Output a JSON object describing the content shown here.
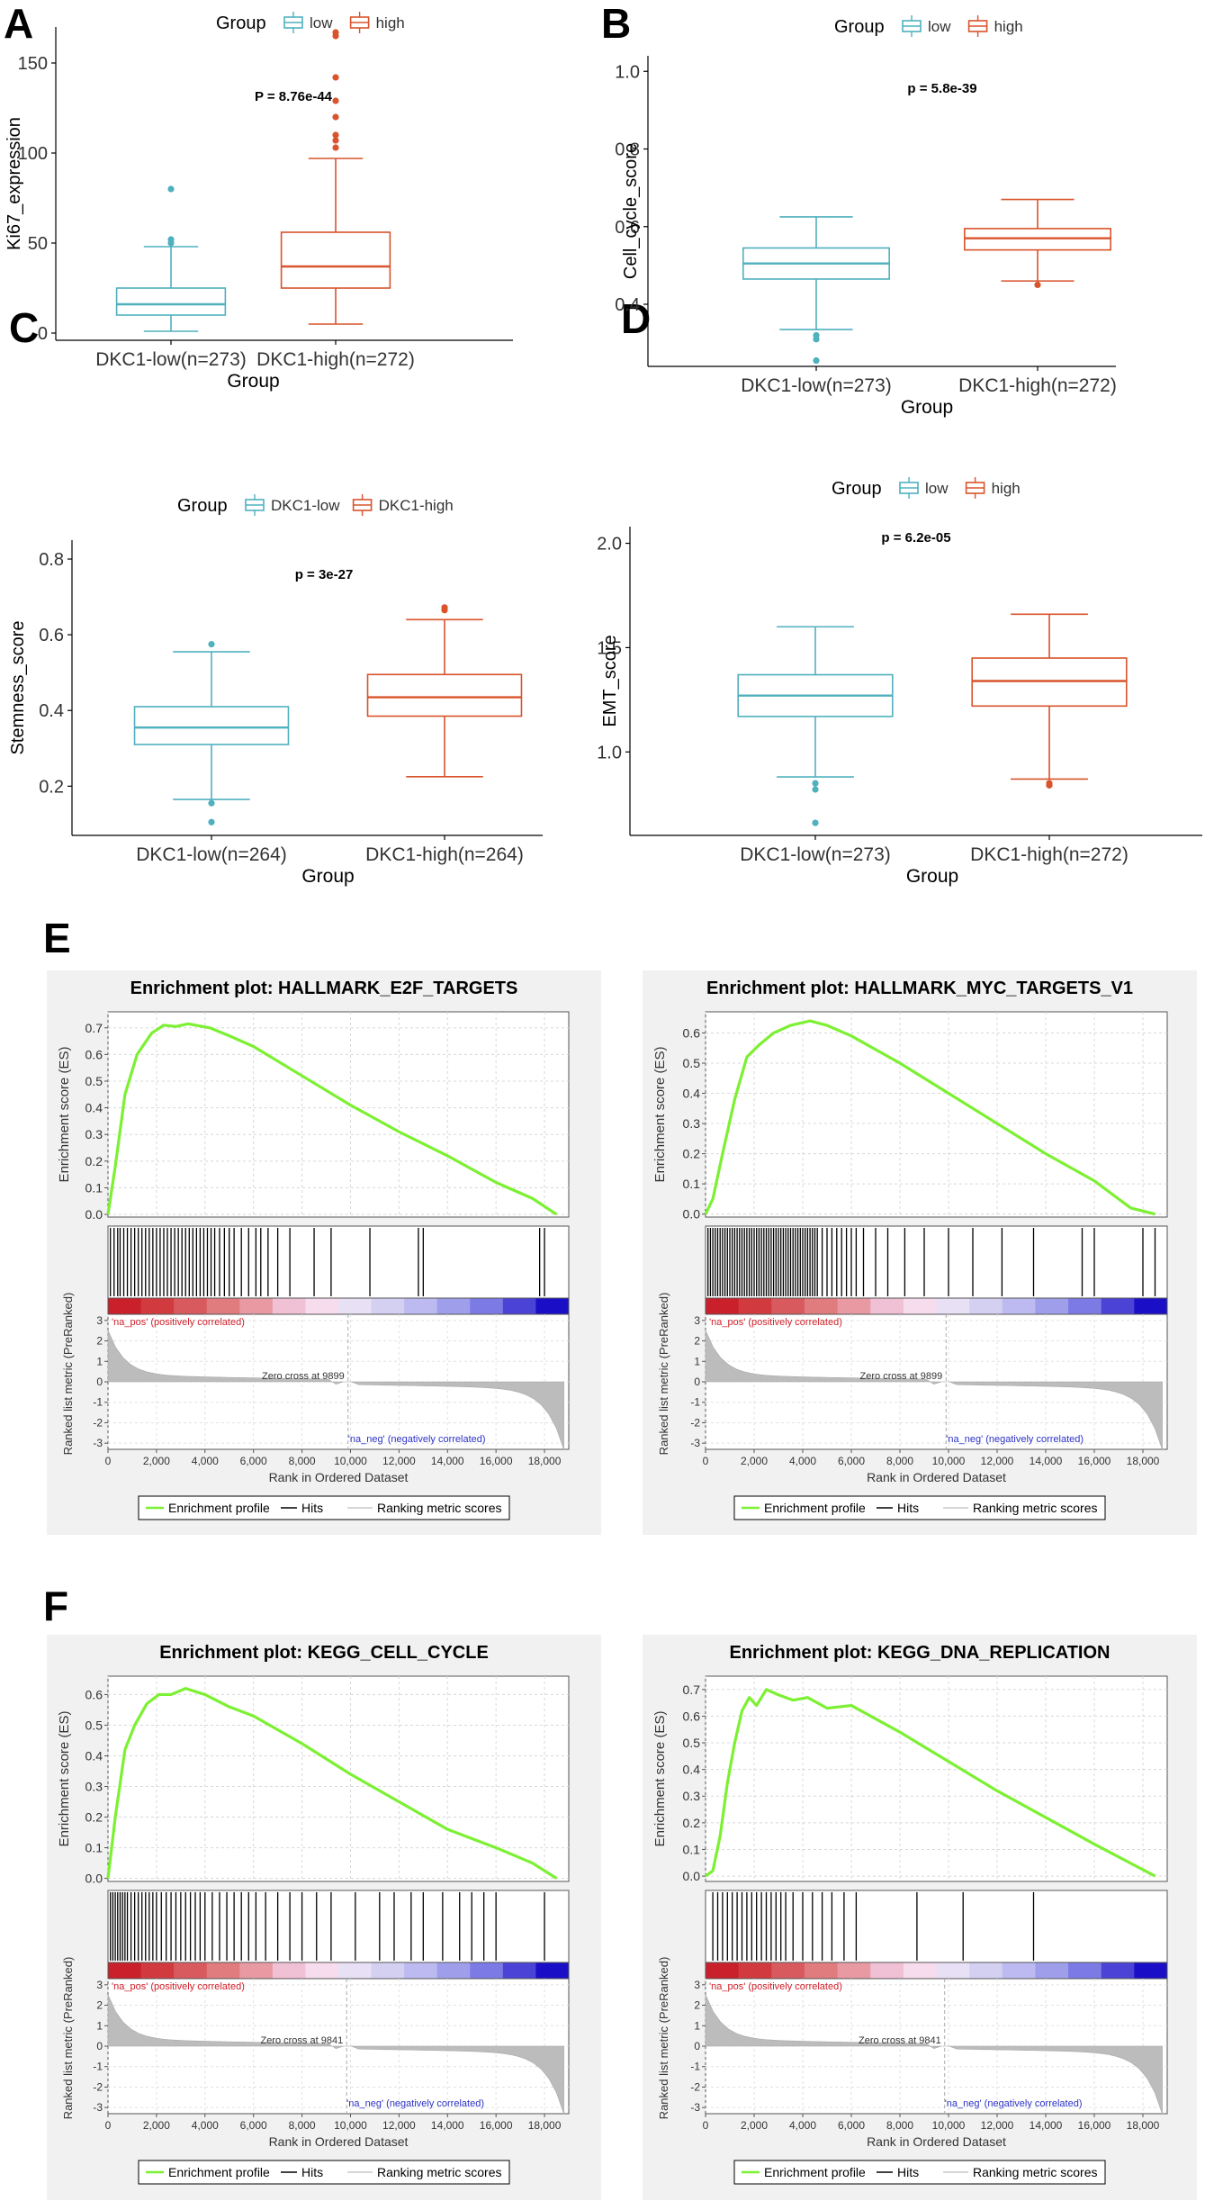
{
  "panel_letters": [
    "A",
    "B",
    "C",
    "D",
    "E",
    "F"
  ],
  "colors": {
    "low": "#4fb0be",
    "high": "#d9532b",
    "es_line": "#7cf032",
    "gray": "#bcbcbc",
    "hit": "#000000"
  },
  "legend_common": {
    "hits": "Hits",
    "ranking": "Ranking metric scores",
    "profile": "Enrichment profile"
  },
  "gsea_common": {
    "es_ylabel": "Enrichment score (ES)",
    "metric_ylabel": "Ranked list metric (PreRanked)",
    "xlabel": "Rank in Ordered Dataset",
    "pos_label": "'na_pos' (positively correlated)",
    "neg_label": "'na_neg' (negatively correlated)"
  },
  "chart_data": [
    {
      "panel": "A",
      "type": "boxplot",
      "legend_title": "Group",
      "legend": [
        "low",
        "high"
      ],
      "ylabel": "Ki67_expression",
      "xlabel": "Group",
      "categories": [
        "DKC1-low(n=273)",
        "DKC1-high(n=272)"
      ],
      "ylim": [
        -4,
        170
      ],
      "yticks": [
        0,
        50,
        100,
        150
      ],
      "ytick_labels": [
        "0",
        "50",
        "100",
        "150"
      ],
      "pvalue": "P = 8.76e-44",
      "boxes": [
        {
          "q1": 10,
          "median": 16,
          "q3": 25,
          "wlo": 1,
          "whi": 48,
          "outliers": [
            50,
            52,
            80
          ]
        },
        {
          "q1": 25,
          "median": 37,
          "q3": 56,
          "wlo": 5,
          "whi": 97,
          "outliers": [
            103,
            107,
            110,
            120,
            129,
            142,
            165,
            167
          ]
        }
      ]
    },
    {
      "panel": "B",
      "type": "boxplot",
      "legend_title": "Group",
      "legend": [
        "low",
        "high"
      ],
      "ylabel": "Cell_cycle_score",
      "xlabel": "Group",
      "categories": [
        "DKC1-low(n=273)",
        "DKC1-high(n=272)"
      ],
      "ylim": [
        0.24,
        1.04
      ],
      "yticks": [
        0.4,
        0.6,
        0.8,
        1.0
      ],
      "ytick_labels": [
        "0.4",
        "0.6",
        "0.8",
        "1.0"
      ],
      "pvalue": "p = 5.8e-39",
      "boxes": [
        {
          "q1": 0.465,
          "median": 0.505,
          "q3": 0.545,
          "wlo": 0.335,
          "whi": 0.625,
          "outliers": [
            0.31,
            0.32,
            0.255
          ]
        },
        {
          "q1": 0.54,
          "median": 0.57,
          "q3": 0.595,
          "wlo": 0.46,
          "whi": 0.67,
          "outliers": [
            0.45
          ]
        }
      ]
    },
    {
      "panel": "C",
      "type": "boxplot",
      "legend_title": "Group",
      "legend": [
        "DKC1-low",
        "DKC1-high"
      ],
      "ylabel": "Stemness_score",
      "xlabel": "Group",
      "categories": [
        "DKC1-low(n=264)",
        "DKC1-high(n=264)"
      ],
      "ylim": [
        0.07,
        0.85
      ],
      "yticks": [
        0.2,
        0.4,
        0.6,
        0.8
      ],
      "ytick_labels": [
        "0.2",
        "0.4",
        "0.6",
        "0.8"
      ],
      "pvalue": "p = 3e-27",
      "boxes": [
        {
          "q1": 0.31,
          "median": 0.355,
          "q3": 0.41,
          "wlo": 0.165,
          "whi": 0.555,
          "outliers": [
            0.575,
            0.155,
            0.105
          ]
        },
        {
          "q1": 0.385,
          "median": 0.435,
          "q3": 0.495,
          "wlo": 0.225,
          "whi": 0.64,
          "outliers": [
            0.665,
            0.672
          ]
        }
      ]
    },
    {
      "panel": "D",
      "type": "boxplot",
      "legend_title": "Group",
      "legend": [
        "low",
        "high"
      ],
      "ylabel": "EMT_score",
      "xlabel": "Group",
      "categories": [
        "DKC1-low(n=273)",
        "DKC1-high(n=272)"
      ],
      "ylim": [
        0.6,
        2.08
      ],
      "yticks": [
        1.0,
        1.5,
        2.0
      ],
      "ytick_labels": [
        "1.0",
        "1.5",
        "2.0"
      ],
      "pvalue": "p = 6.2e-05",
      "boxes": [
        {
          "q1": 1.17,
          "median": 1.27,
          "q3": 1.37,
          "wlo": 0.88,
          "whi": 1.6,
          "outliers": [
            0.85,
            0.82,
            0.66
          ]
        },
        {
          "q1": 1.22,
          "median": 1.34,
          "q3": 1.45,
          "wlo": 0.87,
          "whi": 1.66,
          "outliers": [
            0.85,
            0.84
          ]
        }
      ]
    },
    {
      "panel": "E1",
      "type": "line",
      "title": "Enrichment plot: HALLMARK_E2F_TARGETS",
      "es_ticks": [
        0,
        0.1,
        0.2,
        0.3,
        0.4,
        0.5,
        0.6,
        0.7
      ],
      "es_tick_labels": [
        "0.0",
        "0.1",
        "0.2",
        "0.3",
        "0.4",
        "0.5",
        "0.6",
        "0.7"
      ],
      "es_ylim": [
        -0.01,
        0.76
      ],
      "x": [
        0,
        300,
        700,
        1200,
        1800,
        2300,
        2800,
        3300,
        4200,
        5000,
        6000,
        8000,
        10000,
        12000,
        14000,
        16000,
        17500,
        18500
      ],
      "es": [
        0,
        0.18,
        0.45,
        0.6,
        0.68,
        0.71,
        0.705,
        0.715,
        0.7,
        0.67,
        0.63,
        0.52,
        0.41,
        0.31,
        0.22,
        0.12,
        0.06,
        0
      ],
      "hits": [
        100,
        250,
        400,
        500,
        650,
        800,
        950,
        1100,
        1250,
        1400,
        1550,
        1700,
        1850,
        2000,
        2150,
        2300,
        2450,
        2600,
        2750,
        2900,
        3050,
        3200,
        3350,
        3500,
        3650,
        3800,
        3950,
        4100,
        4250,
        4400,
        4600,
        4800,
        5000,
        5200,
        5500,
        5800,
        6100,
        6300,
        6600,
        7000,
        7500,
        8500,
        9200,
        10800,
        12800,
        13000,
        17800,
        18000
      ],
      "metric_ylim": [
        -3.3,
        3.3
      ],
      "metric_ticks": [
        -3,
        -2,
        -1,
        0,
        1,
        2,
        3
      ],
      "metric_tick_labels": [
        "-3",
        "-2",
        "-1",
        "0",
        "1",
        "2",
        "3"
      ],
      "zero_cross": 9899,
      "zero_cross_label": "Zero cross at 9899",
      "xlim": [
        0,
        19000
      ],
      "xticks": [
        0,
        2000,
        4000,
        6000,
        8000,
        10000,
        12000,
        14000,
        16000,
        18000
      ],
      "xtick_labels": [
        "0",
        "2,000",
        "4,000",
        "6,000",
        "8,000",
        "10,000",
        "12,000",
        "14,000",
        "16,000",
        "18,000"
      ]
    },
    {
      "panel": "E2",
      "type": "line",
      "title": "Enrichment plot: HALLMARK_MYC_TARGETS_V1",
      "es_ticks": [
        0,
        0.1,
        0.2,
        0.3,
        0.4,
        0.5,
        0.6
      ],
      "es_tick_labels": [
        "0.0",
        "0.1",
        "0.2",
        "0.3",
        "0.4",
        "0.5",
        "0.6"
      ],
      "es_ylim": [
        -0.01,
        0.67
      ],
      "x": [
        0,
        300,
        700,
        1200,
        1700,
        2200,
        2800,
        3500,
        4300,
        5000,
        6000,
        8000,
        10000,
        12000,
        14000,
        16000,
        17500,
        18500
      ],
      "es": [
        0,
        0.05,
        0.2,
        0.38,
        0.52,
        0.56,
        0.6,
        0.625,
        0.64,
        0.625,
        0.59,
        0.5,
        0.4,
        0.3,
        0.2,
        0.11,
        0.02,
        0
      ],
      "hits": [
        100,
        200,
        300,
        400,
        500,
        600,
        700,
        800,
        900,
        1000,
        1100,
        1200,
        1300,
        1400,
        1500,
        1600,
        1700,
        1800,
        1900,
        2000,
        2100,
        2200,
        2300,
        2400,
        2500,
        2600,
        2700,
        2800,
        2900,
        3000,
        3100,
        3200,
        3300,
        3400,
        3500,
        3600,
        3700,
        3800,
        3900,
        4000,
        4100,
        4200,
        4300,
        4400,
        4500,
        4600,
        4800,
        5000,
        5200,
        5400,
        5600,
        5800,
        6000,
        6200,
        6500,
        7000,
        7500,
        8200,
        9000,
        10000,
        11000,
        12200,
        13500,
        15500,
        16000,
        18000,
        18500
      ],
      "metric_ylim": [
        -3.3,
        3.3
      ],
      "metric_ticks": [
        -3,
        -2,
        -1,
        0,
        1,
        2,
        3
      ],
      "metric_tick_labels": [
        "-3",
        "-2",
        "-1",
        "0",
        "1",
        "2",
        "3"
      ],
      "zero_cross": 9899,
      "zero_cross_label": "Zero cross at 9899",
      "xlim": [
        0,
        19000
      ],
      "xticks": [
        0,
        2000,
        4000,
        6000,
        8000,
        10000,
        12000,
        14000,
        16000,
        18000
      ],
      "xtick_labels": [
        "0",
        "2,000",
        "4,000",
        "6,000",
        "8,000",
        "10,000",
        "12,000",
        "14,000",
        "16,000",
        "18,000"
      ]
    },
    {
      "panel": "F1",
      "type": "line",
      "title": "Enrichment plot: KEGG_CELL_CYCLE",
      "es_ticks": [
        0,
        0.1,
        0.2,
        0.3,
        0.4,
        0.5,
        0.6
      ],
      "es_tick_labels": [
        "0.0",
        "0.1",
        "0.2",
        "0.3",
        "0.4",
        "0.5",
        "0.6"
      ],
      "es_ylim": [
        -0.01,
        0.66
      ],
      "x": [
        0,
        300,
        700,
        1100,
        1600,
        2100,
        2600,
        3200,
        4000,
        5000,
        6000,
        8000,
        10000,
        12000,
        14000,
        16000,
        17500,
        18500
      ],
      "es": [
        0,
        0.2,
        0.42,
        0.5,
        0.57,
        0.6,
        0.6,
        0.62,
        0.6,
        0.56,
        0.53,
        0.44,
        0.34,
        0.25,
        0.16,
        0.1,
        0.05,
        0
      ],
      "hits": [
        100,
        200,
        300,
        400,
        500,
        600,
        700,
        800,
        950,
        1100,
        1250,
        1400,
        1550,
        1700,
        1850,
        2000,
        2200,
        2400,
        2600,
        2800,
        3000,
        3200,
        3400,
        3600,
        3800,
        4000,
        4300,
        4600,
        4900,
        5200,
        5500,
        5800,
        6100,
        6500,
        7000,
        7500,
        8000,
        8600,
        9200,
        10200,
        11200,
        11800,
        12500,
        13000,
        13800,
        14500,
        15000,
        15500,
        16000,
        18000
      ],
      "metric_ylim": [
        -3.3,
        3.3
      ],
      "metric_ticks": [
        -3,
        -2,
        -1,
        0,
        1,
        2,
        3
      ],
      "metric_tick_labels": [
        "-3",
        "-2",
        "-1",
        "0",
        "1",
        "2",
        "3"
      ],
      "zero_cross": 9841,
      "zero_cross_label": "Zero cross at 9841",
      "xlim": [
        0,
        19000
      ],
      "xticks": [
        0,
        2000,
        4000,
        6000,
        8000,
        10000,
        12000,
        14000,
        16000,
        18000
      ],
      "xtick_labels": [
        "0",
        "2,000",
        "4,000",
        "6,000",
        "8,000",
        "10,000",
        "12,000",
        "14,000",
        "16,000",
        "18,000"
      ]
    },
    {
      "panel": "F2",
      "type": "line",
      "title": "Enrichment plot: KEGG_DNA_REPLICATION",
      "es_ticks": [
        0,
        0.1,
        0.2,
        0.3,
        0.4,
        0.5,
        0.6,
        0.7
      ],
      "es_tick_labels": [
        "0.0",
        "0.1",
        "0.2",
        "0.3",
        "0.4",
        "0.5",
        "0.6",
        "0.7"
      ],
      "es_ylim": [
        -0.02,
        0.75
      ],
      "x": [
        0,
        300,
        600,
        900,
        1200,
        1500,
        1800,
        2100,
        2500,
        3000,
        3600,
        4200,
        5000,
        6000,
        8000,
        10000,
        12000,
        14000,
        16000,
        18500
      ],
      "es": [
        0,
        0.02,
        0.15,
        0.35,
        0.5,
        0.62,
        0.67,
        0.64,
        0.7,
        0.68,
        0.66,
        0.67,
        0.63,
        0.64,
        0.54,
        0.43,
        0.32,
        0.22,
        0.12,
        0
      ],
      "hits": [
        300,
        500,
        700,
        900,
        1100,
        1300,
        1500,
        1700,
        1900,
        2100,
        2300,
        2500,
        2700,
        2900,
        3100,
        3300,
        3600,
        4000,
        4400,
        4800,
        5200,
        5700,
        6200,
        8700,
        10600,
        13500
      ],
      "metric_ylim": [
        -3.3,
        3.3
      ],
      "metric_ticks": [
        -3,
        -2,
        -1,
        0,
        1,
        2,
        3
      ],
      "metric_tick_labels": [
        "-3",
        "-2",
        "-1",
        "0",
        "1",
        "2",
        "3"
      ],
      "zero_cross": 9841,
      "zero_cross_label": "Zero cross at 9841",
      "xlim": [
        0,
        19000
      ],
      "xticks": [
        0,
        2000,
        4000,
        6000,
        8000,
        10000,
        12000,
        14000,
        16000,
        18000
      ],
      "xtick_labels": [
        "0",
        "2,000",
        "4,000",
        "6,000",
        "8,000",
        "10,000",
        "12,000",
        "14,000",
        "16,000",
        "18,000"
      ]
    }
  ]
}
